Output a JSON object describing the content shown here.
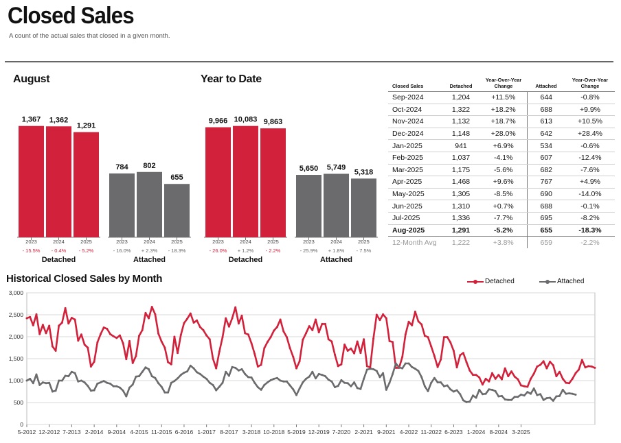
{
  "header": {
    "title": "Closed Sales",
    "subtitle": "A count of the actual sales that closed in a given month."
  },
  "colors": {
    "detached": "#d2213b",
    "attached": "#6b6b6e",
    "grid": "#d8d8d8"
  },
  "chart_data": [
    {
      "type": "bar",
      "title": "August",
      "groups": [
        {
          "label": "Detached",
          "color": "#d2213b",
          "years": [
            "2023",
            "2024",
            "2025"
          ],
          "values": [
            1367,
            1362,
            1291
          ],
          "changes": [
            "- 15.5%",
            "- 0.4%",
            "- 5.2%"
          ]
        },
        {
          "label": "Attached",
          "color": "#6b6b6e",
          "years": [
            "2023",
            "2024",
            "2025"
          ],
          "values": [
            784,
            802,
            655
          ],
          "changes": [
            "- 16.0%",
            "+ 2.3%",
            "- 18.3%"
          ]
        }
      ],
      "ylim": [
        0,
        1600
      ]
    },
    {
      "type": "bar",
      "title": "Year to Date",
      "groups": [
        {
          "label": "Detached",
          "color": "#d2213b",
          "years": [
            "2023",
            "2024",
            "2025"
          ],
          "values": [
            9966,
            10083,
            9863
          ],
          "changes": [
            "- 26.0%",
            "+ 1.2%",
            "- 2.2%"
          ]
        },
        {
          "label": "Attached",
          "color": "#6b6b6e",
          "years": [
            "2023",
            "2024",
            "2025"
          ],
          "values": [
            5650,
            5749,
            5318
          ],
          "changes": [
            "- 25.9%",
            "+ 1.8%",
            "- 7.5%"
          ]
        }
      ],
      "ylim": [
        0,
        11800
      ]
    },
    {
      "type": "table",
      "columns": [
        "Closed Sales",
        "Detached",
        "Year-Over-Year Change",
        "Attached",
        "Year-Over-Year Change"
      ],
      "rows": [
        [
          "Sep-2024",
          "1,204",
          "+11.5%",
          "644",
          "-0.8%"
        ],
        [
          "Oct-2024",
          "1,322",
          "+18.2%",
          "688",
          "+9.9%"
        ],
        [
          "Nov-2024",
          "1,132",
          "+18.7%",
          "613",
          "+10.5%"
        ],
        [
          "Dec-2024",
          "1,148",
          "+28.0%",
          "642",
          "+28.4%"
        ],
        [
          "Jan-2025",
          "941",
          "+6.9%",
          "534",
          "-0.6%"
        ],
        [
          "Feb-2025",
          "1,037",
          "-4.1%",
          "607",
          "-12.4%"
        ],
        [
          "Mar-2025",
          "1,175",
          "-5.6%",
          "682",
          "-7.6%"
        ],
        [
          "Apr-2025",
          "1,468",
          "+9.6%",
          "767",
          "+4.9%"
        ],
        [
          "May-2025",
          "1,305",
          "-8.5%",
          "690",
          "-14.0%"
        ],
        [
          "Jun-2025",
          "1,310",
          "+0.7%",
          "688",
          "-0.1%"
        ],
        [
          "Jul-2025",
          "1,336",
          "-7.7%",
          "695",
          "-8.2%"
        ],
        [
          "Aug-2025",
          "1,291",
          "-5.2%",
          "655",
          "-18.3%"
        ]
      ],
      "footer": [
        "12-Month Avg",
        "1,222",
        "+3.8%",
        "659",
        "-2.2%"
      ]
    },
    {
      "type": "line",
      "title": "Historical Closed Sales by Month",
      "start": "5-2012",
      "xticks": [
        "5-2012",
        "12-2012",
        "7-2013",
        "2-2014",
        "9-2014",
        "4-2015",
        "11-2015",
        "6-2016",
        "1-2017",
        "8-2017",
        "3-2018",
        "10-2018",
        "5-2019",
        "12-2019",
        "7-2020",
        "2-2021",
        "9-2021",
        "4-2022",
        "11-2022",
        "6-2023",
        "1-2024",
        "8-2024",
        "3-2025"
      ],
      "ylim": [
        0,
        3000
      ],
      "yticks": [
        "0",
        "500",
        "1,000",
        "1,500",
        "2,000",
        "2,500",
        "3,000"
      ],
      "grid": true,
      "legend": "top-right",
      "series": [
        {
          "name": "Detached",
          "color": "#d2213b",
          "values": [
            2420,
            2450,
            2260,
            2510,
            2060,
            2270,
            2080,
            2250,
            1780,
            1680,
            2250,
            2320,
            2650,
            2300,
            2430,
            2390,
            1910,
            2050,
            1820,
            1750,
            1320,
            1430,
            1870,
            2060,
            2210,
            2180,
            2060,
            2010,
            1970,
            2030,
            1850,
            1490,
            1900,
            1400,
            1560,
            2020,
            2150,
            2540,
            2420,
            2680,
            2510,
            2070,
            1890,
            1750,
            1420,
            1370,
            2000,
            1630,
            2040,
            2310,
            2410,
            2530,
            2320,
            2370,
            2220,
            2150,
            2030,
            1940,
            1500,
            1280,
            1660,
            1990,
            2420,
            2230,
            2420,
            2670,
            2300,
            2480,
            2080,
            2050,
            1850,
            1610,
            1320,
            1360,
            1740,
            1880,
            1990,
            2140,
            2220,
            2390,
            2120,
            1990,
            1740,
            1540,
            1280,
            1440,
            1930,
            2080,
            2240,
            2150,
            2390,
            2100,
            2290,
            2290,
            1940,
            1890,
            1590,
            1330,
            1370,
            1820,
            1680,
            1730,
            1620,
            1890,
            1630,
            1940,
            1330,
            1300,
            1960,
            2500,
            2380,
            2510,
            2420,
            1900,
            1880,
            1290,
            1290,
            1540,
            2050,
            2340,
            2260,
            2570,
            2350,
            2280,
            2020,
            1990,
            1780,
            1560,
            1310,
            1480,
            1990,
            1990,
            1870,
            1680,
            1300,
            1580,
            1630,
            1420,
            1230,
            1130,
            1130,
            1070,
            910,
            1040,
            980,
            1170,
            1040,
            1130,
            1030,
            1280,
            1100,
            1210,
            1090,
            1030,
            890,
            870,
            860,
            1040,
            1160,
            1320,
            1360,
            1440,
            1280,
            1430,
            1350,
            1100,
            1200,
            1040,
            950,
            940,
            1040,
            1170,
            1250,
            1470,
            1300,
            1330,
            1320,
            1290
          ]
        },
        {
          "name": "Attached",
          "color": "#6b6b6e",
          "values": [
            1000,
            1040,
            940,
            1140,
            900,
            960,
            940,
            950,
            750,
            770,
            1000,
            1000,
            1110,
            1100,
            1200,
            1170,
            980,
            1000,
            960,
            880,
            770,
            780,
            930,
            960,
            990,
            950,
            930,
            870,
            870,
            840,
            770,
            640,
            840,
            910,
            1090,
            1100,
            1200,
            1300,
            1260,
            1100,
            1060,
            940,
            860,
            730,
            730,
            950,
            990,
            1050,
            1130,
            1180,
            1210,
            1340,
            1280,
            1190,
            1150,
            1090,
            1040,
            950,
            900,
            780,
            860,
            950,
            1200,
            1110,
            1310,
            1290,
            1230,
            1260,
            1150,
            1080,
            1070,
            950,
            850,
            790,
            900,
            960,
            1010,
            1040,
            1060,
            1000,
            980,
            980,
            890,
            800,
            670,
            820,
            960,
            1040,
            1090,
            1200,
            1050,
            1150,
            1130,
            1100,
            1020,
            980,
            850,
            880,
            1010,
            950,
            940,
            870,
            960,
            830,
            810,
            1040,
            1250,
            1270,
            1260,
            1220,
            1080,
            1170,
            790,
            950,
            1150,
            1390,
            1300,
            1280,
            1390,
            1390,
            1310,
            1270,
            1220,
            1080,
            870,
            760,
            950,
            1060,
            960,
            960,
            870,
            890,
            800,
            750,
            780,
            690,
            550,
            510,
            520,
            660,
            610,
            790,
            690,
            700,
            800,
            790,
            760,
            640,
            650,
            570,
            560,
            560,
            630,
            630,
            680,
            660,
            740,
            700,
            820,
            670,
            690,
            560,
            600,
            610,
            540,
            640,
            650,
            790,
            700,
            710,
            700,
            680
          ]
        }
      ]
    }
  ]
}
